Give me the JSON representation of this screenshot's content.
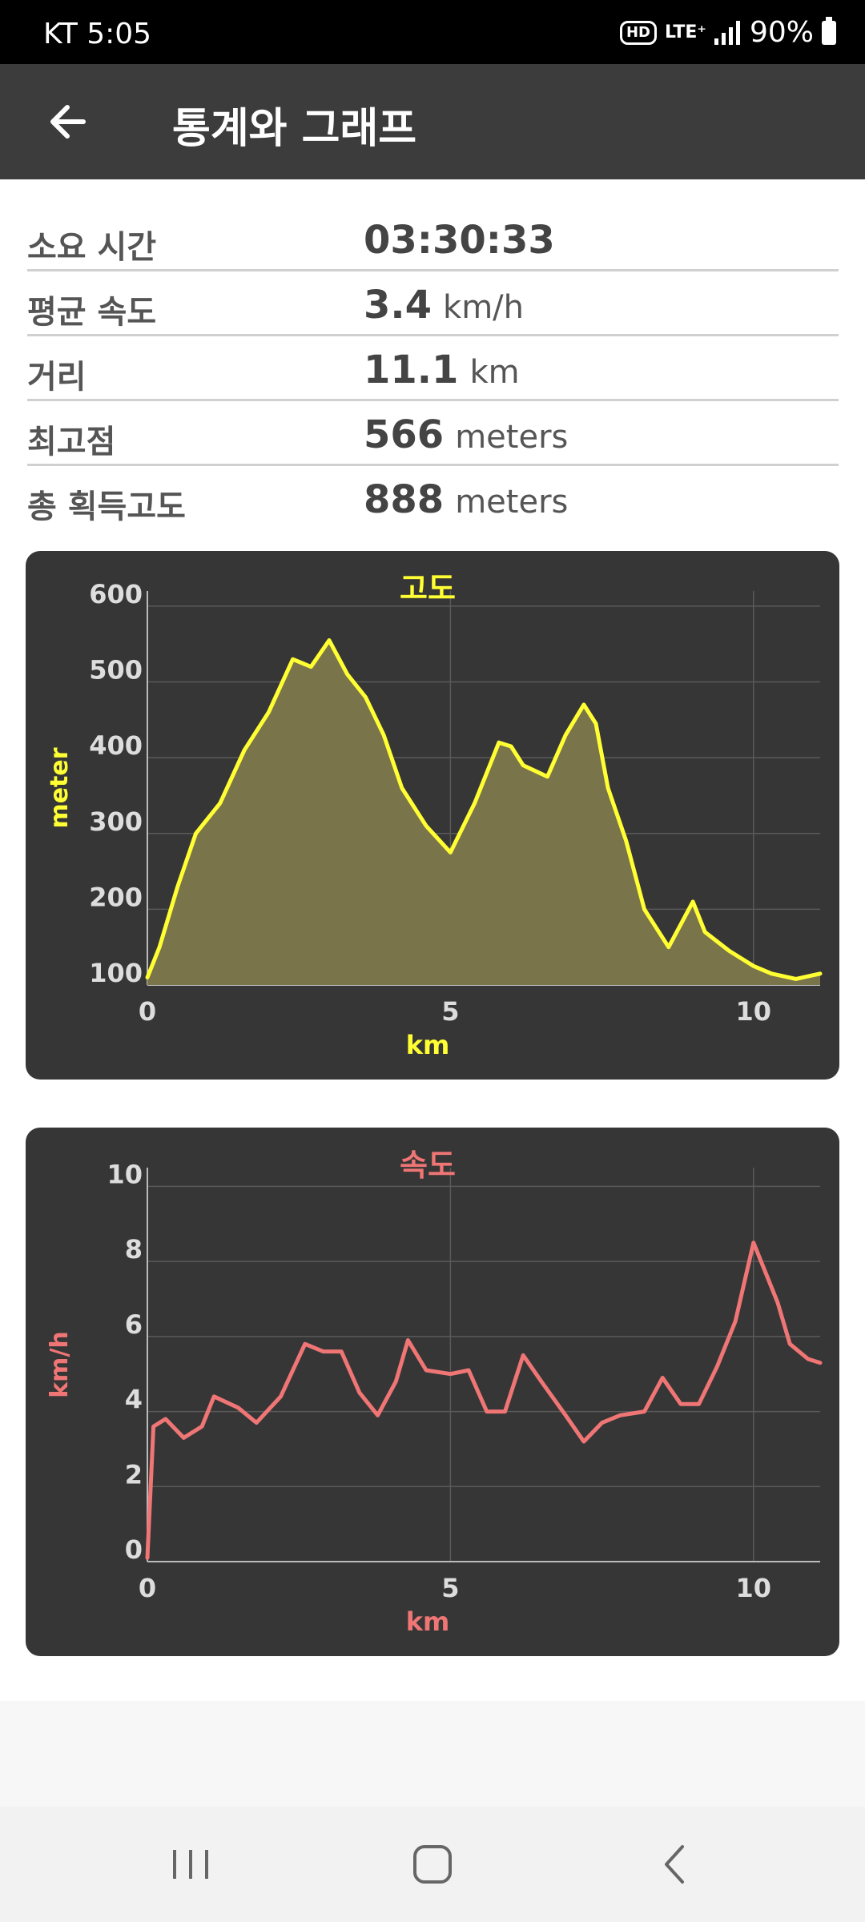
{
  "status_bar": {
    "carrier_time": "KT 5:05",
    "hd": "HD",
    "network": "LTE⁺",
    "battery": "90%"
  },
  "app_bar": {
    "title": "통계와 그래프"
  },
  "stats": [
    {
      "label": "소요 시간",
      "value": "03:30:33",
      "unit": ""
    },
    {
      "label": "평균 속도",
      "value": "3.4",
      "unit": "km/h"
    },
    {
      "label": "거리",
      "value": "11.1",
      "unit": "km"
    },
    {
      "label": "최고점",
      "value": "566",
      "unit": "meters"
    },
    {
      "label": "총 획득고도",
      "value": "888",
      "unit": "meters"
    }
  ],
  "chart_data": [
    {
      "type": "area",
      "title": "고도",
      "xlabel": "km",
      "ylabel": "meter",
      "color": "#ffff33",
      "fill": "#7a744a",
      "xlim": [
        0,
        11.1
      ],
      "ylim": [
        100,
        620
      ],
      "xticks": [
        "0",
        "5",
        "10"
      ],
      "xtick_values": [
        0,
        5,
        10
      ],
      "yticks": [
        "100",
        "200",
        "300",
        "400",
        "500",
        "600"
      ],
      "ytick_values": [
        100,
        200,
        300,
        400,
        500,
        600
      ],
      "x": [
        0,
        0.2,
        0.5,
        0.8,
        1.2,
        1.6,
        2.0,
        2.4,
        2.7,
        3.0,
        3.3,
        3.6,
        3.9,
        4.2,
        4.6,
        5.0,
        5.4,
        5.8,
        6.0,
        6.2,
        6.6,
        6.9,
        7.2,
        7.4,
        7.6,
        7.9,
        8.2,
        8.6,
        9.0,
        9.2,
        9.6,
        10.0,
        10.3,
        10.7,
        11.1
      ],
      "y": [
        110,
        150,
        230,
        300,
        340,
        410,
        460,
        530,
        520,
        555,
        510,
        480,
        430,
        360,
        310,
        275,
        340,
        420,
        415,
        390,
        375,
        430,
        470,
        445,
        360,
        290,
        200,
        150,
        210,
        170,
        145,
        125,
        115,
        108,
        115
      ]
    },
    {
      "type": "line",
      "title": "속도",
      "xlabel": "km",
      "ylabel": "km/h",
      "color": "#f07575",
      "xlim": [
        0,
        11.1
      ],
      "ylim": [
        0,
        10.5
      ],
      "xticks": [
        "0",
        "5",
        "10"
      ],
      "xtick_values": [
        0,
        5,
        10
      ],
      "yticks": [
        "0",
        "2",
        "4",
        "6",
        "8",
        "10"
      ],
      "ytick_values": [
        0,
        2,
        4,
        6,
        8,
        10
      ],
      "x": [
        0,
        0.1,
        0.3,
        0.6,
        0.9,
        1.1,
        1.5,
        1.8,
        2.2,
        2.6,
        2.9,
        3.2,
        3.5,
        3.8,
        4.1,
        4.3,
        4.6,
        5.0,
        5.3,
        5.6,
        5.9,
        6.2,
        6.5,
        6.9,
        7.2,
        7.5,
        7.8,
        8.2,
        8.5,
        8.8,
        9.1,
        9.4,
        9.7,
        10.0,
        10.2,
        10.4,
        10.6,
        10.9,
        11.1
      ],
      "y": [
        0.1,
        3.6,
        3.8,
        3.3,
        3.6,
        4.4,
        4.1,
        3.7,
        4.4,
        5.8,
        5.6,
        5.6,
        4.5,
        3.9,
        4.8,
        5.9,
        5.1,
        5.0,
        5.1,
        4.0,
        4.0,
        5.5,
        4.8,
        3.9,
        3.2,
        3.7,
        3.9,
        4.0,
        4.9,
        4.2,
        4.2,
        5.2,
        6.4,
        8.5,
        7.7,
        6.9,
        5.8,
        5.4,
        5.3
      ]
    }
  ]
}
